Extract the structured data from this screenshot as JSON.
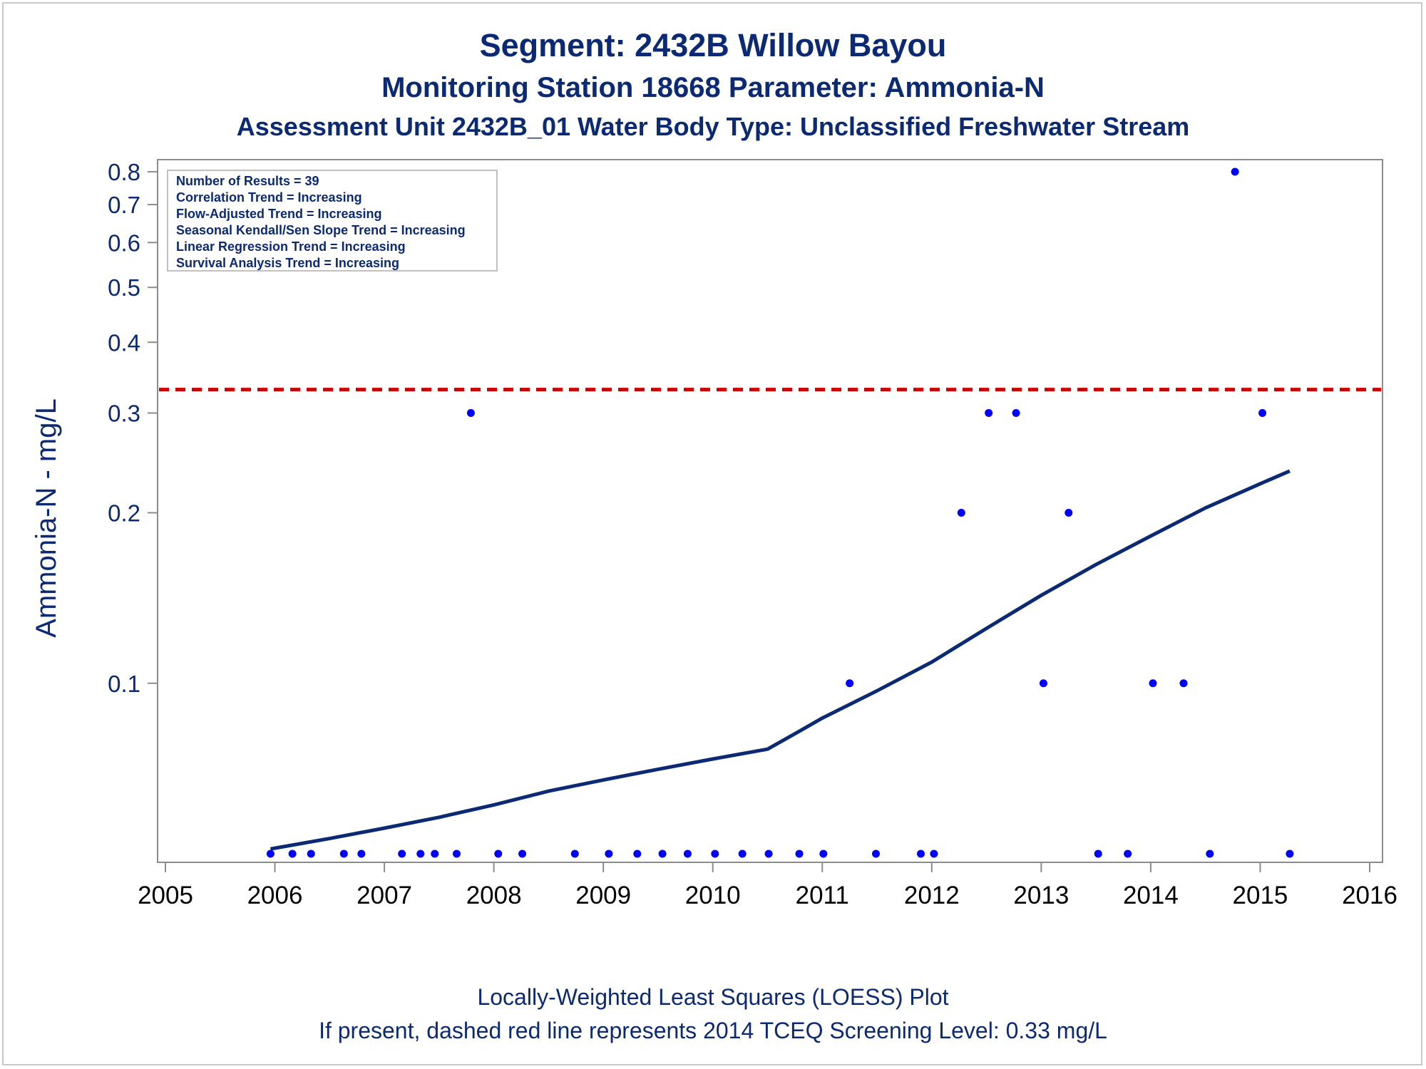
{
  "titles": {
    "title": "Segment: 2432B  Willow Bayou",
    "subtitle1": "Monitoring Station 18668 Parameter: Ammonia-N",
    "subtitle2": "Assessment Unit 2432B_01   Water Body Type: Unclassified Freshwater Stream"
  },
  "footnotes": {
    "line1": "Locally-Weighted Least Squares (LOESS) Plot",
    "line2": "If present, dashed red line represents 2014 TCEQ Screening Level: 0.33 mg/L"
  },
  "colors": {
    "text": "#0c2a73",
    "points": "#0000ff",
    "loess": "#0c2a73",
    "screening_line": "#cc0000",
    "axis": "#8c8c8c"
  },
  "chart_data": {
    "type": "scatter",
    "xlabel": "",
    "ylabel": "Ammonia-N - mg/L",
    "y_scale": "log",
    "xlim": [
      2005,
      2016
    ],
    "ylim": [
      0.05,
      0.8
    ],
    "x_ticks": [
      2005,
      2006,
      2007,
      2008,
      2009,
      2010,
      2011,
      2012,
      2013,
      2014,
      2015,
      2016
    ],
    "y_ticks": [
      0.1,
      0.2,
      0.3,
      0.4,
      0.5,
      0.6,
      0.7,
      0.8
    ],
    "y_tick_labels": [
      "0.1",
      "0.2",
      "0.3",
      "0.4",
      "0.5",
      "0.6",
      "0.7",
      "0.8"
    ],
    "grid": false,
    "stats_box": {
      "position": "top-left",
      "lines": [
        "Number of Results = 39",
        "Correlation Trend = Increasing",
        "Flow-Adjusted Trend = Increasing",
        "Seasonal Kendall/Sen Slope Trend = Increasing",
        "Linear Regression Trend = Increasing",
        "Survival Analysis Trend = Increasing"
      ]
    },
    "reference_line": {
      "y": 0.33,
      "style": "dashed"
    },
    "points": [
      {
        "x": 2005.96,
        "y": 0.05
      },
      {
        "x": 2006.16,
        "y": 0.05
      },
      {
        "x": 2006.33,
        "y": 0.05
      },
      {
        "x": 2006.63,
        "y": 0.05
      },
      {
        "x": 2006.79,
        "y": 0.05
      },
      {
        "x": 2007.16,
        "y": 0.05
      },
      {
        "x": 2007.33,
        "y": 0.05
      },
      {
        "x": 2007.46,
        "y": 0.05
      },
      {
        "x": 2007.66,
        "y": 0.05
      },
      {
        "x": 2007.79,
        "y": 0.3
      },
      {
        "x": 2008.04,
        "y": 0.05
      },
      {
        "x": 2008.26,
        "y": 0.05
      },
      {
        "x": 2008.74,
        "y": 0.05
      },
      {
        "x": 2009.05,
        "y": 0.05
      },
      {
        "x": 2009.31,
        "y": 0.05
      },
      {
        "x": 2009.54,
        "y": 0.05
      },
      {
        "x": 2009.77,
        "y": 0.05
      },
      {
        "x": 2010.02,
        "y": 0.05
      },
      {
        "x": 2010.27,
        "y": 0.05
      },
      {
        "x": 2010.51,
        "y": 0.05
      },
      {
        "x": 2010.79,
        "y": 0.05
      },
      {
        "x": 2011.01,
        "y": 0.05
      },
      {
        "x": 2011.25,
        "y": 0.1
      },
      {
        "x": 2011.49,
        "y": 0.05
      },
      {
        "x": 2011.9,
        "y": 0.05
      },
      {
        "x": 2012.02,
        "y": 0.05
      },
      {
        "x": 2012.27,
        "y": 0.2
      },
      {
        "x": 2012.52,
        "y": 0.3
      },
      {
        "x": 2012.77,
        "y": 0.3
      },
      {
        "x": 2013.02,
        "y": 0.1
      },
      {
        "x": 2013.25,
        "y": 0.2
      },
      {
        "x": 2013.52,
        "y": 0.05
      },
      {
        "x": 2013.79,
        "y": 0.05
      },
      {
        "x": 2014.02,
        "y": 0.1
      },
      {
        "x": 2014.3,
        "y": 0.1
      },
      {
        "x": 2014.54,
        "y": 0.05
      },
      {
        "x": 2014.77,
        "y": 0.8
      },
      {
        "x": 2015.02,
        "y": 0.3
      },
      {
        "x": 2015.27,
        "y": 0.05
      }
    ],
    "loess": [
      {
        "x": 2005.96,
        "y": 0.051
      },
      {
        "x": 2006.5,
        "y": 0.0532
      },
      {
        "x": 2007.0,
        "y": 0.0555
      },
      {
        "x": 2007.5,
        "y": 0.058
      },
      {
        "x": 2008.0,
        "y": 0.061
      },
      {
        "x": 2008.5,
        "y": 0.0645
      },
      {
        "x": 2009.0,
        "y": 0.0675
      },
      {
        "x": 2009.5,
        "y": 0.0705
      },
      {
        "x": 2010.0,
        "y": 0.0735
      },
      {
        "x": 2010.5,
        "y": 0.0765
      },
      {
        "x": 2010.8,
        "y": 0.0825
      },
      {
        "x": 2011.0,
        "y": 0.0868
      },
      {
        "x": 2011.5,
        "y": 0.097
      },
      {
        "x": 2012.0,
        "y": 0.109
      },
      {
        "x": 2012.5,
        "y": 0.125
      },
      {
        "x": 2013.0,
        "y": 0.143
      },
      {
        "x": 2013.5,
        "y": 0.162
      },
      {
        "x": 2014.0,
        "y": 0.182
      },
      {
        "x": 2014.5,
        "y": 0.204
      },
      {
        "x": 2015.0,
        "y": 0.225
      },
      {
        "x": 2015.27,
        "y": 0.237
      }
    ]
  }
}
